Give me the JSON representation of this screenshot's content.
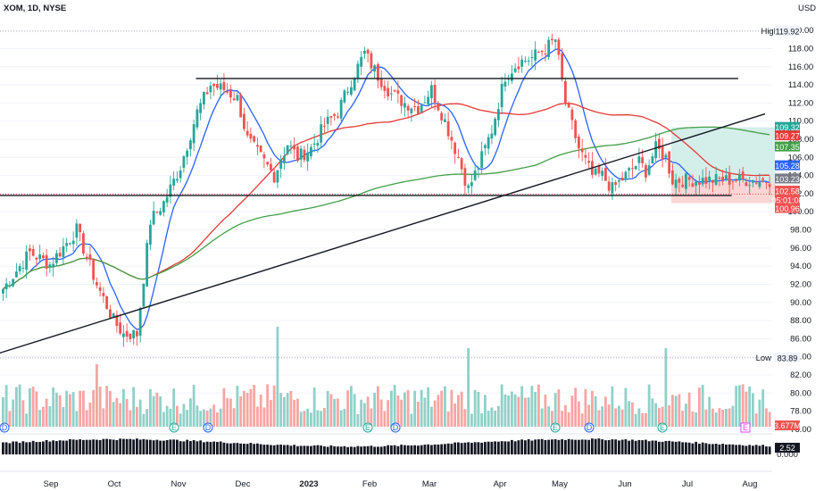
{
  "header": {
    "symbol": "XOM",
    "interval": "1D",
    "exchange": "NYSE",
    "title": "XOM, 1D, NYSE",
    "currency": "USD"
  },
  "colors": {
    "up": "#26a69a",
    "down": "#ef5350",
    "sma_short": "#2962ff",
    "sma_mid": "#e53935",
    "sma_long": "#43a047",
    "volume_up": "#8fd1c8",
    "volume_down": "#f7a5a3",
    "osc": "#131722",
    "target_zone": "#d4eeea",
    "stop_zone": "#fbd6d4"
  },
  "chart_data": {
    "type": "candlestick",
    "y_range": [
      75.5,
      121
    ],
    "price_ticks": [
      "120.00",
      "118.00",
      "116.00",
      "114.00",
      "112.00",
      "110.00",
      "108.00",
      "106.00",
      "104.00",
      "102.00",
      "100.00",
      "98.00",
      "96.00",
      "94.00",
      "92.00",
      "90.00",
      "88.00",
      "86.00",
      "84.00",
      "82.00",
      "80.00",
      "78.00",
      "76.00"
    ],
    "x_months": [
      "Sep",
      "Oct",
      "Nov",
      "Dec",
      "2023",
      "Feb",
      "Mar",
      "Apr",
      "May",
      "Jun",
      "Jul",
      "Aug"
    ],
    "high_label": "High",
    "high_value": "119.92",
    "low_label": "Low",
    "low_value": "83.89",
    "price_badges": [
      {
        "id": "target",
        "value": "109.32",
        "color": "#26a69a",
        "text": "#ffffff"
      },
      {
        "id": "sma_mid",
        "value": "109.27",
        "color": "#e53935",
        "text": "#ffffff"
      },
      {
        "id": "sma_long",
        "value": "107.35",
        "color": "#43a047",
        "text": "#ffffff"
      },
      {
        "id": "sma_short",
        "value": "105.28",
        "color": "#2962ff",
        "text": "#ffffff"
      },
      {
        "id": "entry",
        "value": "103.23",
        "color": "#787b86",
        "text": "#ffffff"
      },
      {
        "id": "last",
        "value": "102.58",
        "color": "#ef5350",
        "text": "#ffffff"
      },
      {
        "id": "countdown",
        "value": "05:01:08",
        "color": "#ef5350",
        "text": "#ffffff"
      },
      {
        "id": "stop",
        "value": "100.96",
        "color": "#ef5350",
        "text": "#ffffff"
      }
    ],
    "volume_label": "3.677M",
    "osc_badge": "2.52",
    "osc_tick": "0.000",
    "horizontal_levels": [
      114.7,
      101.8
    ],
    "trendline": {
      "from": {
        "date_index": -6,
        "price": 83.8
      },
      "to": {
        "date_index": 228,
        "price": 110.8
      }
    },
    "position": {
      "entry": 103.23,
      "target": 109.32,
      "stop": 100.96
    },
    "event_markers": [
      {
        "label": "D",
        "kind": "dividend"
      },
      {
        "label": "E",
        "kind": "earnings"
      },
      {
        "label": "D",
        "kind": "dividend"
      },
      {
        "label": "E",
        "kind": "earnings"
      },
      {
        "label": "D",
        "kind": "dividend"
      },
      {
        "label": "E",
        "kind": "earnings"
      },
      {
        "label": "D",
        "kind": "dividend"
      },
      {
        "label": "E",
        "kind": "earnings"
      }
    ],
    "price_anchors": [
      [
        0,
        91.5
      ],
      [
        8,
        95.5
      ],
      [
        14,
        94.2
      ],
      [
        22,
        98
      ],
      [
        28,
        92
      ],
      [
        33,
        88
      ],
      [
        36,
        86.5
      ],
      [
        40,
        86.5
      ],
      [
        44,
        99
      ],
      [
        48,
        101
      ],
      [
        53,
        105
      ],
      [
        58,
        111
      ],
      [
        62,
        114
      ],
      [
        66,
        113.5
      ],
      [
        70,
        112.5
      ],
      [
        73,
        108
      ],
      [
        77,
        106
      ],
      [
        81,
        104
      ],
      [
        85,
        107.5
      ],
      [
        88,
        106
      ],
      [
        92,
        107
      ],
      [
        96,
        109.5
      ],
      [
        100,
        111
      ],
      [
        104,
        114.5
      ],
      [
        108,
        117.5
      ],
      [
        112,
        115
      ],
      [
        116,
        113
      ],
      [
        120,
        112
      ],
      [
        124,
        111.5
      ],
      [
        128,
        113.5
      ],
      [
        132,
        110
      ],
      [
        136,
        106
      ],
      [
        139,
        102.5
      ],
      [
        142,
        105
      ],
      [
        146,
        109
      ],
      [
        150,
        115
      ],
      [
        154,
        116.5
      ],
      [
        158,
        117
      ],
      [
        162,
        118
      ],
      [
        165,
        119
      ],
      [
        168,
        112
      ],
      [
        172,
        107
      ],
      [
        176,
        104
      ],
      [
        179,
        104
      ],
      [
        182,
        102.5
      ],
      [
        186,
        104
      ],
      [
        190,
        105.5
      ],
      [
        192,
        104.5
      ],
      [
        195,
        107
      ],
      [
        198,
        106
      ],
      [
        200,
        103.5
      ]
    ]
  }
}
